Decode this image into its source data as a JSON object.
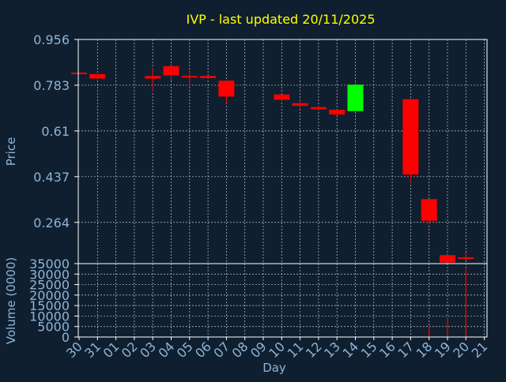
{
  "colors": {
    "background": "#0f1f2f",
    "title": "#ffff00",
    "axis_text": "#8fb4d8",
    "frame": "#ffffff",
    "grid": "#c8c8c8",
    "up": "#00ff00",
    "down": "#ff0000"
  },
  "chart_data": [
    {
      "type": "candlestick",
      "title": "IVP - last updated 20/11/2025",
      "ylabel": "Price",
      "xlabel": "Day",
      "ylim": [
        0.108,
        0.956
      ],
      "y_ticks": [
        "0.956",
        "0.783",
        "0.61",
        "0.437",
        "0.264"
      ],
      "grid": true,
      "x_ticks": [
        "30",
        "31",
        "01",
        "02",
        "03",
        "04",
        "05",
        "06",
        "07",
        "08",
        "09",
        "10",
        "11",
        "12",
        "13",
        "14",
        "15",
        "16",
        "17",
        "18",
        "19",
        "20",
        "21"
      ],
      "candles": [
        {
          "day": "30",
          "open": 0.83,
          "high": 0.83,
          "low": 0.825,
          "close": 0.825
        },
        {
          "day": "31",
          "open": 0.825,
          "high": 0.825,
          "low": 0.805,
          "close": 0.808
        },
        {
          "day": "03",
          "open": 0.818,
          "high": 0.85,
          "low": 0.76,
          "close": 0.808
        },
        {
          "day": "04",
          "open": 0.855,
          "high": 0.855,
          "low": 0.8,
          "close": 0.82
        },
        {
          "day": "05",
          "open": 0.815,
          "high": 0.84,
          "low": 0.78,
          "close": 0.815
        },
        {
          "day": "06",
          "open": 0.818,
          "high": 0.818,
          "low": 0.808,
          "close": 0.81
        },
        {
          "day": "07",
          "open": 0.8,
          "high": 0.8,
          "low": 0.715,
          "close": 0.74
        },
        {
          "day": "10",
          "open": 0.748,
          "high": 0.748,
          "low": 0.725,
          "close": 0.728
        },
        {
          "day": "11",
          "open": 0.715,
          "high": 0.725,
          "low": 0.695,
          "close": 0.705
        },
        {
          "day": "12",
          "open": 0.7,
          "high": 0.705,
          "low": 0.69,
          "close": 0.692
        },
        {
          "day": "13",
          "open": 0.69,
          "high": 0.69,
          "low": 0.67,
          "close": 0.672
        },
        {
          "day": "14",
          "open": 0.685,
          "high": 0.785,
          "low": 0.685,
          "close": 0.785
        },
        {
          "day": "17",
          "open": 0.73,
          "high": 0.73,
          "low": 0.415,
          "close": 0.445
        },
        {
          "day": "18",
          "open": 0.352,
          "high": 0.352,
          "low": 0.255,
          "close": 0.27
        },
        {
          "day": "19",
          "open": 0.14,
          "high": 0.14,
          "low": 0.11,
          "close": 0.112
        },
        {
          "day": "20",
          "open": 0.132,
          "high": 0.15,
          "low": 0.12,
          "close": 0.126
        }
      ]
    },
    {
      "type": "bar",
      "ylabel": "Volume (0000)",
      "xlabel": "Day",
      "ylim": [
        0,
        35000
      ],
      "y_ticks": [
        "35000",
        "30000",
        "25000",
        "20000",
        "15000",
        "10000",
        "5000",
        "0"
      ],
      "grid": true,
      "x_ticks": [
        "30",
        "31",
        "01",
        "02",
        "03",
        "04",
        "05",
        "06",
        "07",
        "08",
        "09",
        "10",
        "11",
        "12",
        "13",
        "14",
        "15",
        "16",
        "17",
        "18",
        "19",
        "20",
        "21"
      ],
      "bars": [
        {
          "day": "30",
          "value": 0
        },
        {
          "day": "31",
          "value": 0
        },
        {
          "day": "03",
          "value": 0
        },
        {
          "day": "04",
          "value": 0
        },
        {
          "day": "05",
          "value": 0
        },
        {
          "day": "06",
          "value": 0
        },
        {
          "day": "07",
          "value": 0
        },
        {
          "day": "10",
          "value": 0
        },
        {
          "day": "11",
          "value": 0
        },
        {
          "day": "12",
          "value": 0
        },
        {
          "day": "13",
          "value": 0
        },
        {
          "day": "14",
          "value": 0
        },
        {
          "day": "17",
          "value": 0
        },
        {
          "day": "18",
          "value": 5000
        },
        {
          "day": "19",
          "value": 9500
        },
        {
          "day": "20",
          "value": 32000
        }
      ]
    }
  ]
}
